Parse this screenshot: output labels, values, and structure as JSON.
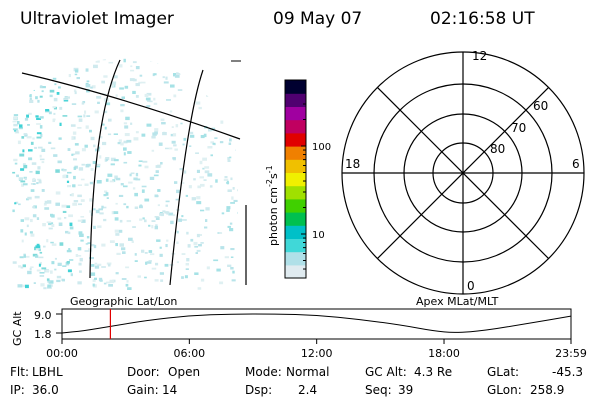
{
  "header": {
    "instrument": "Ultraviolet Imager",
    "date": "09 May 07",
    "time": "02:16:58 UT"
  },
  "colorbar": {
    "unit": "photon cm",
    "unit_exp1": "-2",
    "unit_s": "s",
    "unit_exp2": "-1",
    "ticks": [
      {
        "label": "100",
        "value": 100
      },
      {
        "label": "10",
        "value": 10
      }
    ],
    "colors": [
      "#e0ebf0",
      "#b0e0e8",
      "#40d8d8",
      "#00c0c8",
      "#00c050",
      "#40d000",
      "#a0e000",
      "#f0f000",
      "#f0c000",
      "#f08000",
      "#e00000",
      "#c00060",
      "#a000a0",
      "#500070",
      "#000030"
    ]
  },
  "polar": {
    "mlt_labels": {
      "top": "12",
      "bottom": "0",
      "left": "18",
      "right": "6"
    },
    "lat_labels": [
      "60",
      "70",
      "80"
    ]
  },
  "plot_labels": {
    "left": "Geographic Lat/Lon",
    "right": "Apex MLat/MLT"
  },
  "timeline": {
    "ylabel": "GC Alt",
    "ytick_top": "9.0",
    "ytick_bottom": "1.8",
    "xticks": [
      "00:00",
      "06:00",
      "12:00",
      "18:00",
      "23:59"
    ],
    "current_hour": 2.28,
    "altitude_curve": [
      {
        "t": 0.0,
        "alt": 1.8
      },
      {
        "t": 1.0,
        "alt": 2.6
      },
      {
        "t": 2.28,
        "alt": 4.3
      },
      {
        "t": 4.0,
        "alt": 6.6
      },
      {
        "t": 6.0,
        "alt": 8.4
      },
      {
        "t": 8.0,
        "alt": 9.0
      },
      {
        "t": 10.0,
        "alt": 9.0
      },
      {
        "t": 12.0,
        "alt": 8.6
      },
      {
        "t": 14.0,
        "alt": 7.0
      },
      {
        "t": 16.0,
        "alt": 4.8
      },
      {
        "t": 17.5,
        "alt": 2.6
      },
      {
        "t": 18.5,
        "alt": 1.8
      },
      {
        "t": 20.0,
        "alt": 2.8
      },
      {
        "t": 22.0,
        "alt": 5.5
      },
      {
        "t": 23.98,
        "alt": 8.2
      }
    ]
  },
  "info": {
    "filter": {
      "label": "Flt:",
      "value": "LBHL"
    },
    "ip": {
      "label": "IP:",
      "value": "36.0"
    },
    "door": {
      "label": "Door:",
      "value": "Open"
    },
    "gain": {
      "label": "Gain:",
      "value": "14"
    },
    "mode": {
      "label": "Mode:",
      "value": "Normal"
    },
    "dsp": {
      "label": "Dsp:",
      "value": "2.4"
    },
    "gc_alt": {
      "label": "GC Alt:",
      "value": "4.3 Re"
    },
    "seq": {
      "label": "Seq:",
      "value": "39"
    },
    "glat": {
      "label": "GLat:",
      "value": "-45.3"
    },
    "glon": {
      "label": "GLon:",
      "value": "258.9"
    }
  }
}
